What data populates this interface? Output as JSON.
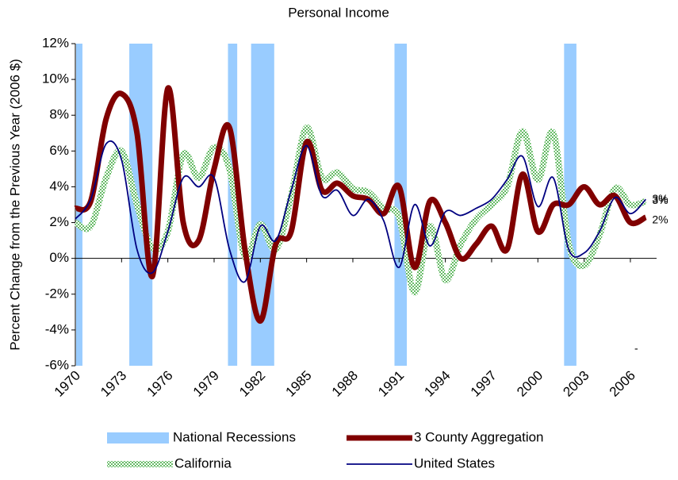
{
  "chart_data": {
    "type": "line",
    "title": "Personal Income",
    "y_label": "Percent Change from the Previous Year (2006 $)",
    "x": [
      1970,
      1971,
      1972,
      1973,
      1974,
      1975,
      1976,
      1977,
      1978,
      1979,
      1980,
      1981,
      1982,
      1983,
      1984,
      1985,
      1986,
      1987,
      1988,
      1989,
      1990,
      1991,
      1992,
      1993,
      1994,
      1995,
      1996,
      1997,
      1998,
      1999,
      2000,
      2001,
      2002,
      2003,
      2004,
      2005,
      2006,
      2007
    ],
    "xlim": [
      1970,
      2007.7
    ],
    "xticks": [
      1970,
      1973,
      1976,
      1979,
      1982,
      1985,
      1988,
      1991,
      1994,
      1997,
      2000,
      2003,
      2006
    ],
    "ylim": [
      -6,
      12
    ],
    "yticks": [
      {
        "value": -6,
        "label": "-6%"
      },
      {
        "value": -4,
        "label": "-4%"
      },
      {
        "value": -2,
        "label": "-2%"
      },
      {
        "value": 0,
        "label": "0%"
      },
      {
        "value": 2,
        "label": "2%"
      },
      {
        "value": 4,
        "label": "4%"
      },
      {
        "value": 6,
        "label": "6%"
      },
      {
        "value": 8,
        "label": "8%"
      },
      {
        "value": 10,
        "label": "10%"
      },
      {
        "value": 12,
        "label": "12%"
      }
    ],
    "recessions": {
      "name": "National Recessions",
      "color": "#99ccff",
      "periods": [
        [
          1970.05,
          1970.46
        ],
        [
          1973.5,
          1975.0
        ],
        [
          1979.9,
          1980.5
        ],
        [
          1981.4,
          1982.9
        ],
        [
          1990.7,
          1991.5
        ],
        [
          2001.7,
          2002.5
        ]
      ]
    },
    "series": [
      {
        "name": "3 County Aggregation",
        "color": "#800000",
        "end_label": "2%",
        "values": [
          2.8,
          3.2,
          7.8,
          9.2,
          7.0,
          -1.0,
          9.5,
          2.0,
          1.0,
          5.0,
          7.3,
          0.5,
          -3.5,
          0.8,
          1.5,
          6.5,
          3.8,
          4.2,
          3.5,
          3.3,
          2.5,
          4.0,
          -0.5,
          3.2,
          2.0,
          0.0,
          0.8,
          1.8,
          0.5,
          4.7,
          1.5,
          3.0,
          3.0,
          4.0,
          3.0,
          3.5,
          2.0,
          2.3
        ]
      },
      {
        "name": "California",
        "color": "#66bb66",
        "end_label": "3%",
        "values": [
          2.0,
          1.8,
          4.5,
          6.0,
          3.0,
          0.6,
          1.5,
          5.8,
          4.5,
          6.2,
          5.0,
          0.1,
          1.9,
          0.5,
          3.5,
          7.3,
          4.5,
          4.8,
          3.9,
          3.7,
          2.8,
          2.3,
          -1.9,
          1.8,
          -1.2,
          0.8,
          2.2,
          3.0,
          4.0,
          7.1,
          4.4,
          7.0,
          0.8,
          -0.4,
          1.3,
          3.9,
          3.0,
          3.2
        ]
      },
      {
        "name": "United States",
        "color": "#000080",
        "end_label": "3%",
        "values": [
          2.2,
          3.3,
          6.4,
          5.5,
          0.5,
          -0.8,
          1.5,
          4.5,
          4.0,
          4.5,
          0.5,
          -1.3,
          1.8,
          1.0,
          3.8,
          6.3,
          3.5,
          3.8,
          2.4,
          3.3,
          2.1,
          -0.5,
          3.0,
          0.7,
          2.6,
          2.4,
          2.8,
          3.3,
          4.4,
          5.7,
          2.9,
          4.5,
          0.5,
          0.3,
          1.5,
          3.4,
          2.5,
          3.3
        ]
      }
    ],
    "annotation": "-",
    "legend": "bottom"
  }
}
